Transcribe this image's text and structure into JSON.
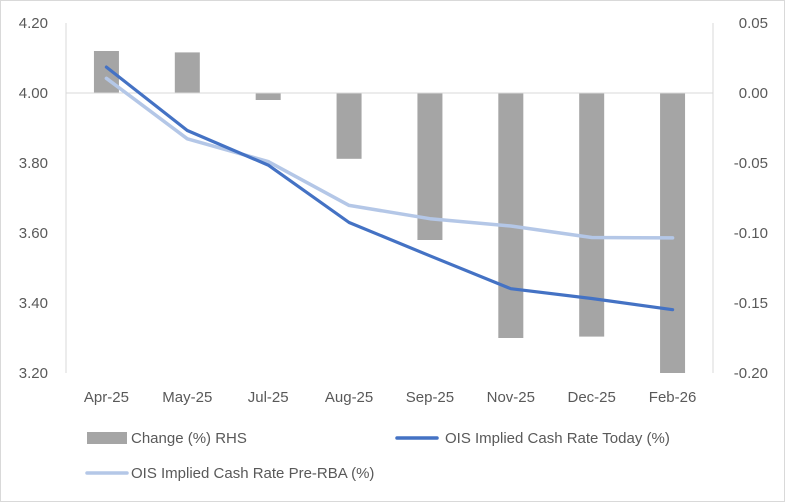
{
  "chart_data": {
    "type": "bar+line",
    "title": "",
    "categories": [
      "Apr-25",
      "May-25",
      "Jul-25",
      "Aug-25",
      "Sep-25",
      "Nov-25",
      "Dec-25",
      "Feb-26"
    ],
    "left_axis": {
      "ylim": [
        3.2,
        4.2
      ],
      "ticks": [
        "3.20",
        "3.40",
        "3.60",
        "3.80",
        "4.00",
        "4.20"
      ],
      "tick_values": [
        3.2,
        3.4,
        3.6,
        3.8,
        4.0,
        4.2
      ]
    },
    "right_axis": {
      "ylim": [
        -0.2,
        0.05
      ],
      "ticks": [
        "-0.20",
        "-0.15",
        "-0.10",
        "-0.05",
        "0.00",
        "0.05"
      ],
      "tick_values": [
        -0.2,
        -0.15,
        -0.1,
        -0.05,
        0.0,
        0.05
      ]
    },
    "series": [
      {
        "name": "Change (%) RHS",
        "type": "bar",
        "axis": "right",
        "color": "#a5a5a5",
        "values": [
          0.03,
          0.029,
          -0.005,
          -0.047,
          -0.105,
          -0.175,
          -0.174,
          -0.2
        ]
      },
      {
        "name": "OIS Implied Cash Rate Today (%)",
        "type": "line",
        "axis": "left",
        "color": "#4472c4",
        "values": [
          4.074,
          3.893,
          3.794,
          3.63,
          3.535,
          3.441,
          3.413,
          3.381
        ]
      },
      {
        "name": "OIS Implied Cash Rate Pre-RBA (%)",
        "type": "line",
        "axis": "left",
        "color": "#b4c7e7",
        "values": [
          4.042,
          3.869,
          3.804,
          3.679,
          3.641,
          3.62,
          3.587,
          3.586
        ]
      }
    ],
    "legend": [
      {
        "label": "Change (%) RHS",
        "style": "bar"
      },
      {
        "label": "OIS Implied Cash Rate Today (%)",
        "style": "line"
      },
      {
        "label": "OIS Implied Cash Rate Pre-RBA (%)",
        "style": "line"
      }
    ],
    "legend_position": "bottom",
    "grid": false
  }
}
